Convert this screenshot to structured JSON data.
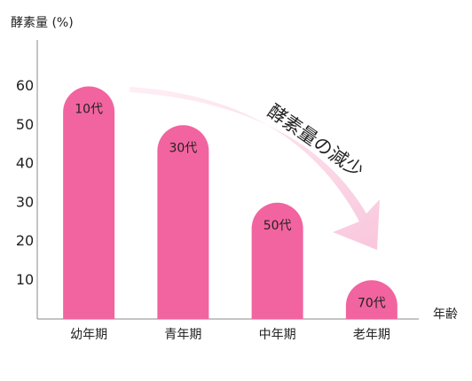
{
  "chart_data": {
    "type": "bar",
    "y_label": "酵素量 (%)",
    "x_label": "年齢",
    "annotation": "酵素量の減少",
    "categories": [
      "幼年期",
      "青年期",
      "中年期",
      "老年期"
    ],
    "values": [
      60,
      50,
      30,
      10
    ],
    "bar_labels": [
      "10代",
      "30代",
      "50代",
      "70代"
    ],
    "color": "#f2649f",
    "ylim": [
      0,
      72
    ],
    "yticks": [
      10,
      20,
      30,
      40,
      50,
      60
    ],
    "grid": false
  }
}
